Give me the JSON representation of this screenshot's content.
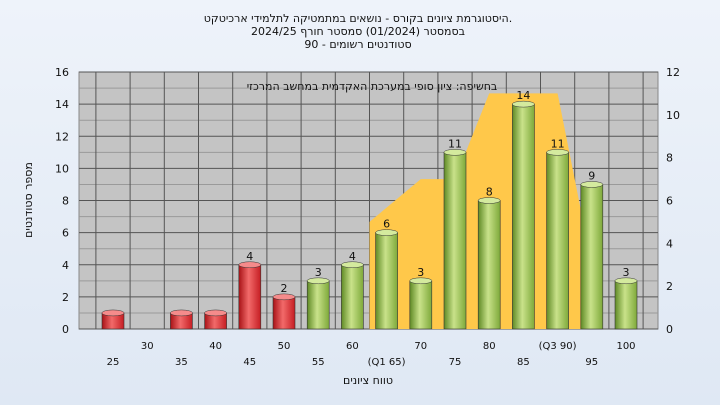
{
  "title_lines": [
    "היסטוגרמת ציונים בקורס - נושאים במתמטיקה לתלמידי ארכיטקט.",
    "בסמסטר  (01/2024)  סמסטר חורף 2024/25",
    "סטודנטים רשומים - 90"
  ],
  "chart_data": {
    "type": "bar",
    "title": "היסטוגרמת ציונים בקורס - נושאים במתמטיקה לתלמידי ארכיטקט.",
    "xlabel": "טווח ציונים",
    "ylabel": "מספר סטודנטים",
    "annotation": "בחשיפה: ציון סופי במערכת האקדמית במחשב המרכזי",
    "categories": [
      "25",
      "30",
      "35",
      "40",
      "45",
      "50",
      "55",
      "60",
      "65",
      "70",
      "75",
      "80",
      "85",
      "90",
      "95",
      "100"
    ],
    "x_tick_labels": [
      "25",
      "30",
      "35",
      "40",
      "45",
      "50",
      "55",
      "60",
      "(Q1 65)",
      "70",
      "75",
      "80",
      "85",
      "(Q3 90)",
      "95",
      "100"
    ],
    "values": [
      1,
      0,
      1,
      1,
      4,
      2,
      3,
      4,
      6,
      3,
      11,
      8,
      14,
      11,
      9,
      3
    ],
    "bar_colors": [
      "red",
      "red",
      "red",
      "red",
      "red",
      "red",
      "green",
      "green",
      "green",
      "green",
      "green",
      "green",
      "green",
      "green",
      "green",
      "green"
    ],
    "colors": {
      "red": "#d9262b",
      "green": "#8ab83e",
      "band": "#ffc84a"
    },
    "ylim_left": [
      0,
      16
    ],
    "yticks_left": [
      "0",
      "2",
      "4",
      "6",
      "8",
      "10",
      "12",
      "14",
      "16"
    ],
    "ylim_right": [
      0,
      12
    ],
    "yticks_right": [
      "0",
      "2",
      "4",
      "6",
      "8",
      "10",
      "12"
    ],
    "band": {
      "description": "interquartile range envelope",
      "x": [
        "65",
        "70",
        "75",
        "80",
        "85",
        "90",
        "95"
      ],
      "y": [
        5,
        7,
        7,
        11,
        11,
        11,
        3
      ],
      "scale": "right"
    },
    "grid": true
  }
}
